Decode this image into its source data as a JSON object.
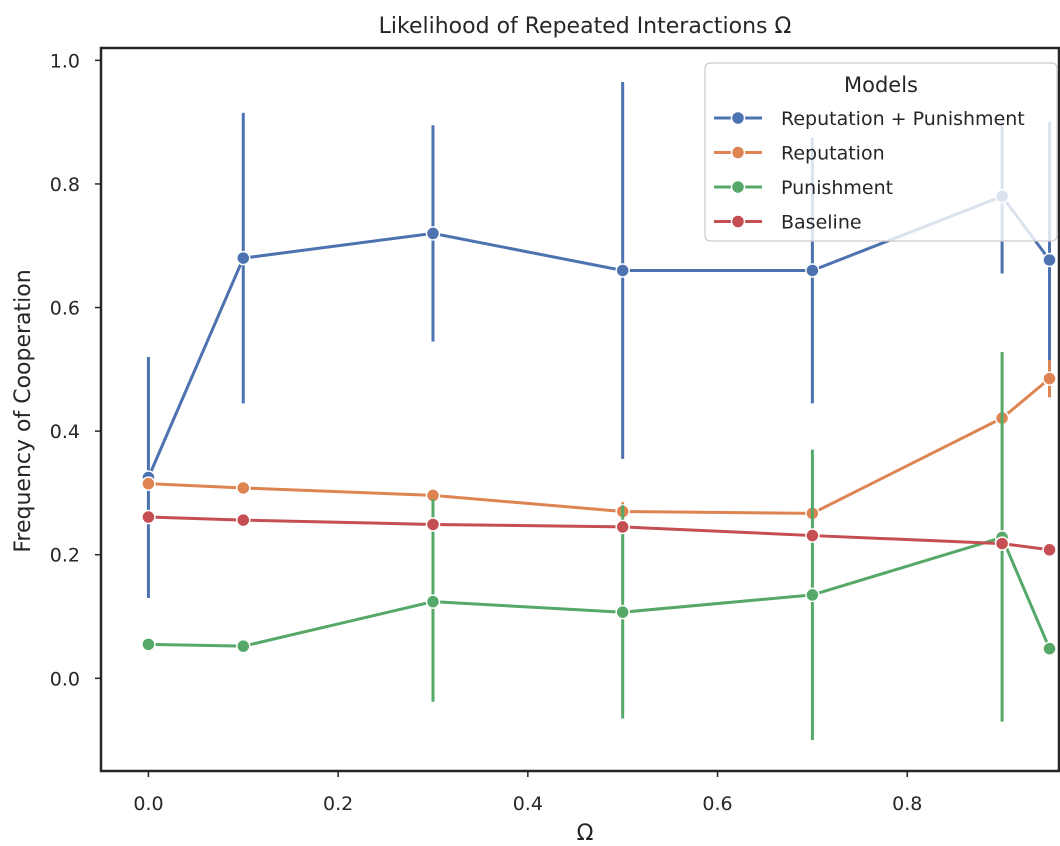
{
  "chart_data": {
    "type": "line",
    "title": "Likelihood of Repeated Interactions Ω",
    "xlabel": "Ω",
    "ylabel": "Frequency of Cooperation",
    "xlim": [
      -0.05,
      0.96
    ],
    "ylim": [
      -0.15,
      1.02
    ],
    "xticks": [
      "0.0",
      "0.2",
      "0.4",
      "0.6",
      "0.8"
    ],
    "yticks": [
      "0.0",
      "0.2",
      "0.4",
      "0.6",
      "0.8",
      "1.0"
    ],
    "grid": false,
    "x": [
      0.0,
      0.1,
      0.3,
      0.5,
      0.7,
      0.9,
      0.95
    ],
    "legend": {
      "title": "Models",
      "position": "top-right"
    },
    "series": [
      {
        "name": "Reputation + Punishment",
        "color": "#4c72b0",
        "values": [
          0.325,
          0.68,
          0.72,
          0.66,
          0.66,
          0.78,
          0.677
        ],
        "ci_low": [
          0.13,
          0.445,
          0.545,
          0.355,
          0.445,
          0.655,
          0.455
        ],
        "ci_high": [
          0.52,
          0.915,
          0.895,
          0.965,
          0.875,
          0.9,
          0.9
        ]
      },
      {
        "name": "Reputation",
        "color": "#dd8452",
        "values": [
          0.315,
          0.308,
          0.296,
          0.27,
          0.267,
          0.421,
          0.485
        ],
        "ci_low": [
          0.305,
          0.298,
          0.286,
          0.258,
          0.257,
          0.411,
          0.455
        ],
        "ci_high": [
          0.325,
          0.318,
          0.306,
          0.285,
          0.277,
          0.431,
          0.515
        ]
      },
      {
        "name": "Punishment",
        "color": "#55a868",
        "values": [
          0.055,
          0.052,
          0.124,
          0.107,
          0.135,
          0.228,
          0.048
        ],
        "ci_low": [
          0.045,
          0.042,
          -0.038,
          -0.065,
          -0.1,
          -0.07,
          0.038
        ],
        "ci_high": [
          0.065,
          0.062,
          0.29,
          0.28,
          0.37,
          0.528,
          0.058
        ]
      },
      {
        "name": "Baseline",
        "color": "#c44e52",
        "values": [
          0.261,
          0.256,
          0.249,
          0.245,
          0.231,
          0.218,
          0.208
        ],
        "ci_low": [
          0.251,
          0.246,
          0.239,
          0.235,
          0.221,
          0.208,
          0.198
        ],
        "ci_high": [
          0.271,
          0.266,
          0.259,
          0.255,
          0.241,
          0.228,
          0.218
        ]
      }
    ]
  }
}
